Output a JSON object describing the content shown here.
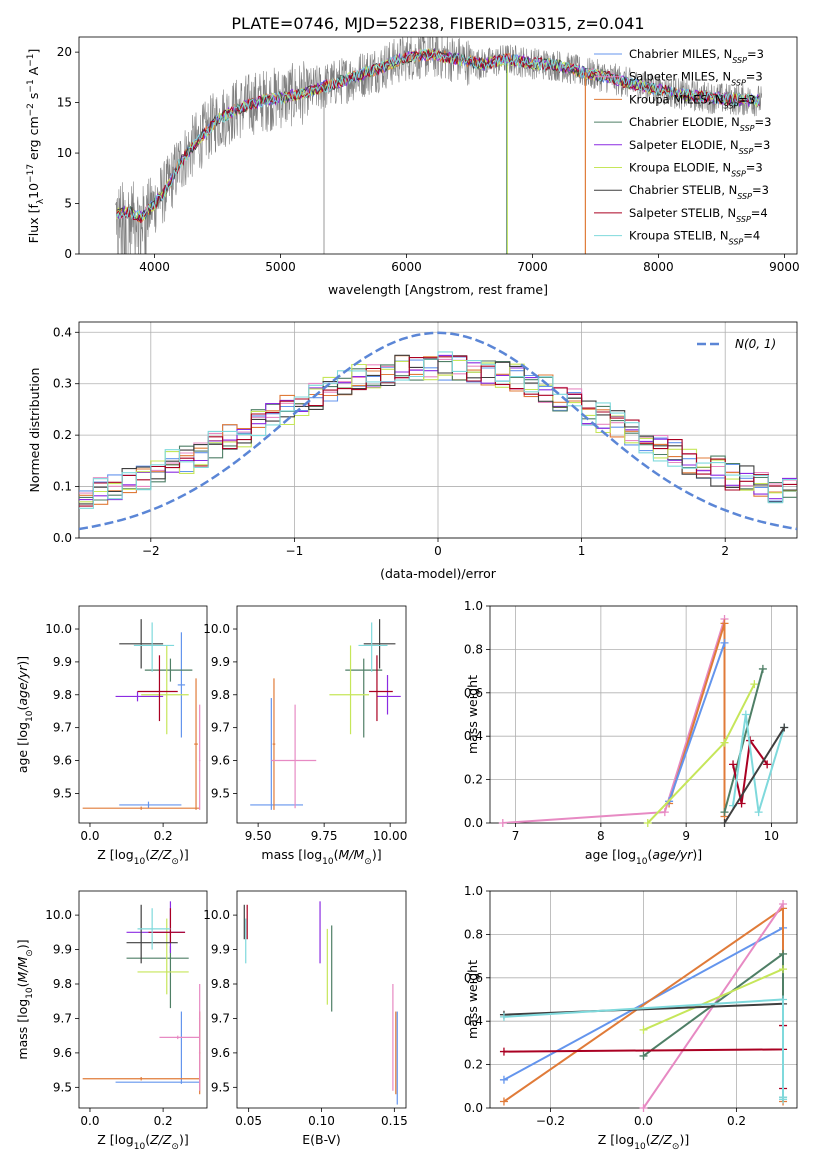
{
  "title": "PLATE=0746, MJD=52238, FIBERID=0315, z=0.041",
  "colors": {
    "obs": "#7f7f7f",
    "Chabrier MILES": "#6495ed",
    "Salpeter MILES": "#e78ac3",
    "Kroupa MILES": "#e07b39",
    "Chabrier ELODIE": "#4f7f66",
    "Salpeter ELODIE": "#8b2be2",
    "Kroupa ELODIE": "#c6e65a",
    "Chabrier STELIB": "#3f3f3f",
    "Salpeter STELIB": "#aa0022",
    "Kroupa STELIB": "#7fd9dc",
    "gauss": "#5b86d6"
  },
  "chart_data": [
    {
      "type": "line",
      "name": "spectrum",
      "title": "PLATE=0746, MJD=52238, FIBERID=0315, z=0.041",
      "xlabel": "wavelength [Angstrom, rest frame]",
      "ylabel": "Flux [f_λ 10^-17 erg cm^-2 s^-1 A^-1]",
      "xlim": [
        3400,
        9100
      ],
      "ylim": [
        0,
        21.5
      ],
      "xticks": [
        4000,
        5000,
        6000,
        7000,
        8000,
        9000
      ],
      "yticks": [
        0,
        5,
        10,
        15,
        20
      ],
      "continuum": {
        "x": [
          3700,
          3800,
          3900,
          4000,
          4100,
          4200,
          4300,
          4400,
          4500,
          4600,
          4700,
          4800,
          4900,
          5000,
          5200,
          5400,
          5600,
          5800,
          6000,
          6200,
          6400,
          6600,
          6800,
          7000,
          7200,
          7400,
          7600,
          7800,
          8000,
          8200,
          8400,
          8600,
          8800
        ],
        "y": [
          4.0,
          4.2,
          3.6,
          5.0,
          6.5,
          9.0,
          10.6,
          12.0,
          13.3,
          14.0,
          14.6,
          15.0,
          15.3,
          15.5,
          16.0,
          16.8,
          17.6,
          18.5,
          19.5,
          19.8,
          19.3,
          18.8,
          19.3,
          18.9,
          18.7,
          18.0,
          17.5,
          16.8,
          16.3,
          15.8,
          15.5,
          15.3,
          15.2
        ]
      },
      "series": [
        {
          "name": "Chabrier MILES, N_SSP=3",
          "label": "Chabrier MILES, N",
          "nssp": "=3"
        },
        {
          "name": "Salpeter MILES, N_SSP=3",
          "label": "Salpeter MILES, N",
          "nssp": "=3"
        },
        {
          "name": "Kroupa MILES, N_SSP=3",
          "label": "Kroupa MILES, N",
          "nssp": "=3"
        },
        {
          "name": "Chabrier ELODIE, N_SSP=3",
          "label": "Chabrier ELODIE, N",
          "nssp": "=3"
        },
        {
          "name": "Salpeter ELODIE, N_SSP=3",
          "label": "Salpeter ELODIE, N",
          "nssp": "=3"
        },
        {
          "name": "Kroupa ELODIE, N_SSP=3",
          "label": "Kroupa ELODIE, N",
          "nssp": "=3"
        },
        {
          "name": "Chabrier STELIB, N_SSP=3",
          "label": "Chabrier STELIB, N",
          "nssp": "=3"
        },
        {
          "name": "Salpeter STELIB, N_SSP=4",
          "label": "Salpeter STELIB, N",
          "nssp": "=4"
        },
        {
          "name": "Kroupa STELIB, N_SSP=4",
          "label": "Kroupa STELIB, N",
          "nssp": "=4"
        }
      ],
      "legend": "top-right"
    },
    {
      "type": "line",
      "name": "residual-histogram",
      "xlabel": "(data-model)/error",
      "ylabel": "Normed distribution",
      "xlim": [
        -2.5,
        2.5
      ],
      "ylim": [
        0,
        0.42
      ],
      "xticks": [
        -2,
        -1,
        0,
        1,
        2
      ],
      "yticks": [
        0.0,
        0.1,
        0.2,
        0.3,
        0.4
      ],
      "gauss_label": "N(0, 1)",
      "legend": "top-right",
      "grid": true
    },
    {
      "type": "scatter",
      "name": "age-vs-Z",
      "xlabel": "Z [log10(Z/Z☉)]",
      "ylabel": "age [log10(age/yr)]",
      "xlim": [
        -0.03,
        0.32
      ],
      "ylim": [
        9.41,
        10.07
      ],
      "xticks": [
        0.0,
        0.2
      ],
      "yticks": [
        9.5,
        9.6,
        9.7,
        9.8,
        9.9,
        10.0
      ],
      "points": [
        {
          "s": "Chabrier MILES",
          "x": 0.25,
          "y": 9.83,
          "xe": [
            0.24,
            0.26
          ],
          "ye": [
            9.67,
            9.99
          ]
        },
        {
          "s": "Chabrier MILES",
          "x": 0.16,
          "y": 9.465,
          "xe": [
            0.08,
            0.25
          ],
          "ye": [
            9.455,
            9.475
          ]
        },
        {
          "s": "Kroupa MILES",
          "x": 0.29,
          "y": 9.65,
          "xe": [
            0.285,
            0.295
          ],
          "ye": [
            9.45,
            9.85
          ]
        },
        {
          "s": "Kroupa MILES",
          "x": 0.14,
          "y": 9.455,
          "xe": [
            -0.02,
            0.3
          ],
          "ye": [
            9.45,
            9.46
          ]
        },
        {
          "s": "Salpeter MILES",
          "x": 0.3,
          "y": 9.6,
          "xe": [
            0.298,
            0.302
          ],
          "ye": [
            9.45,
            9.77
          ]
        },
        {
          "s": "Chabrier ELODIE",
          "x": 0.22,
          "y": 9.875,
          "xe": [
            0.15,
            0.28
          ],
          "ye": [
            9.84,
            9.91
          ]
        },
        {
          "s": "Kroupa ELODIE",
          "x": 0.21,
          "y": 9.8,
          "xe": [
            0.14,
            0.27
          ],
          "ye": [
            9.68,
            9.95
          ]
        },
        {
          "s": "Salpeter ELODIE",
          "x": 0.13,
          "y": 9.795,
          "xe": [
            0.07,
            0.2
          ],
          "ye": [
            9.78,
            9.81
          ]
        },
        {
          "s": "Chabrier STELIB",
          "x": 0.14,
          "y": 9.955,
          "xe": [
            0.08,
            0.2
          ],
          "ye": [
            9.88,
            10.03
          ]
        },
        {
          "s": "Salpeter STELIB",
          "x": 0.19,
          "y": 9.81,
          "xe": [
            0.13,
            0.24
          ],
          "ye": [
            9.72,
            9.92
          ]
        },
        {
          "s": "Kroupa STELIB",
          "x": 0.17,
          "y": 9.95,
          "xe": [
            0.12,
            0.23
          ],
          "ye": [
            9.87,
            10.02
          ]
        }
      ]
    },
    {
      "type": "scatter",
      "name": "age-vs-mass",
      "xlabel": "mass [log10(M/M☉)]",
      "ylabel": "",
      "xlim": [
        9.42,
        10.06
      ],
      "ylim": [
        9.41,
        10.07
      ],
      "xticks": [
        9.5,
        9.75,
        10.0
      ],
      "tick_labels": [
        "9.50",
        "9.75",
        "10.00"
      ],
      "yticks": [
        9.5,
        9.6,
        9.7,
        9.8,
        9.9,
        10.0
      ],
      "points": [
        {
          "s": "Chabrier MILES",
          "x": 9.55,
          "y": 9.465,
          "xe": [
            9.47,
            9.67
          ],
          "ye": [
            9.45,
            9.79
          ]
        },
        {
          "s": "Kroupa MILES",
          "x": 9.56,
          "y": 9.65,
          "xe": [
            9.555,
            9.565
          ],
          "ye": [
            9.45,
            9.85
          ]
        },
        {
          "s": "Salpeter MILES",
          "x": 9.64,
          "y": 9.6,
          "xe": [
            9.55,
            9.72
          ],
          "ye": [
            9.455,
            9.77
          ]
        },
        {
          "s": "Chabrier ELODIE",
          "x": 9.9,
          "y": 9.875,
          "xe": [
            9.83,
            9.97
          ],
          "ye": [
            9.67,
            9.91
          ]
        },
        {
          "s": "Kroupa ELODIE",
          "x": 9.85,
          "y": 9.8,
          "xe": [
            9.77,
            9.92
          ],
          "ye": [
            9.68,
            9.95
          ]
        },
        {
          "s": "Salpeter ELODIE",
          "x": 9.99,
          "y": 9.795,
          "xe": [
            9.95,
            10.04
          ],
          "ye": [
            9.74,
            9.86
          ]
        },
        {
          "s": "Chabrier STELIB",
          "x": 9.96,
          "y": 9.955,
          "xe": [
            9.9,
            10.02
          ],
          "ye": [
            9.88,
            10.03
          ]
        },
        {
          "s": "Salpeter STELIB",
          "x": 9.95,
          "y": 9.81,
          "xe": [
            9.92,
            10.01
          ],
          "ye": [
            9.72,
            9.92
          ]
        },
        {
          "s": "Kroupa STELIB",
          "x": 9.93,
          "y": 9.95,
          "xe": [
            9.88,
            9.99
          ],
          "ye": [
            9.87,
            10.02
          ]
        }
      ]
    },
    {
      "type": "line",
      "name": "mass-weight-vs-age",
      "xlabel": "age [log10(age/yr)]",
      "ylabel": "mass weight",
      "xlim": [
        6.7,
        10.3
      ],
      "ylim": [
        0,
        1
      ],
      "xticks": [
        7,
        8,
        9,
        10
      ],
      "yticks": [
        0.0,
        0.2,
        0.4,
        0.6,
        0.8,
        1.0
      ],
      "grid": true,
      "series": [
        {
          "s": "Salpeter MILES",
          "x": [
            6.85,
            8.75,
            9.45
          ],
          "y": [
            0.0,
            0.05,
            0.94
          ]
        },
        {
          "s": "Kroupa MILES",
          "x": [
            8.8,
            9.45,
            9.45
          ],
          "y": [
            0.09,
            0.92,
            0.03
          ]
        },
        {
          "s": "Chabrier MILES",
          "x": [
            8.8,
            9.45
          ],
          "y": [
            0.1,
            0.83
          ]
        },
        {
          "s": "Kroupa ELODIE",
          "x": [
            8.55,
            9.45,
            9.8
          ],
          "y": [
            0.0,
            0.37,
            0.64
          ]
        },
        {
          "s": "Chabrier ELODIE",
          "x": [
            9.45,
            9.9
          ],
          "y": [
            0.05,
            0.71
          ]
        },
        {
          "s": "Salpeter STELIB",
          "x": [
            9.55,
            9.65,
            9.75,
            9.95
          ],
          "y": [
            0.27,
            0.09,
            0.38,
            0.27
          ]
        },
        {
          "s": "Kroupa STELIB",
          "x": [
            9.55,
            9.7,
            9.85,
            10.15
          ],
          "y": [
            0.08,
            0.5,
            0.05,
            0.44
          ]
        },
        {
          "s": "Chabrier STELIB",
          "x": [
            9.45,
            10.15
          ],
          "y": [
            0.0,
            0.44
          ]
        }
      ]
    },
    {
      "type": "scatter",
      "name": "mass-vs-Z",
      "xlabel": "Z [log10(Z/Z☉)]",
      "ylabel": "mass [log10(M/M☉)]",
      "xlim": [
        -0.03,
        0.32
      ],
      "ylim": [
        9.44,
        10.07
      ],
      "xticks": [
        0.0,
        0.2
      ],
      "yticks": [
        9.5,
        9.6,
        9.7,
        9.8,
        9.9,
        10.0
      ],
      "points": [
        {
          "s": "Chabrier MILES",
          "x": 0.25,
          "y": 9.515,
          "xe": [
            0.07,
            0.3
          ],
          "ye": [
            9.51,
            9.72
          ]
        },
        {
          "s": "Kroupa MILES",
          "x": 0.14,
          "y": 9.525,
          "xe": [
            -0.02,
            0.3
          ],
          "ye": [
            9.52,
            9.53
          ]
        },
        {
          "s": "Kroupa MILES",
          "x": 0.3,
          "y": 9.6,
          "xe": [
            0.298,
            0.302
          ],
          "ye": [
            9.48,
            9.72
          ]
        },
        {
          "s": "Salpeter MILES",
          "x": 0.24,
          "y": 9.645,
          "xe": [
            0.19,
            0.3
          ],
          "ye": [
            9.64,
            9.65
          ]
        },
        {
          "s": "Salpeter MILES",
          "x": 0.3,
          "y": 9.7,
          "xe": [
            0.298,
            0.302
          ],
          "ye": [
            9.49,
            9.8
          ]
        },
        {
          "s": "Chabrier ELODIE",
          "x": 0.22,
          "y": 9.875,
          "xe": [
            0.1,
            0.27
          ],
          "ye": [
            9.73,
            9.91
          ]
        },
        {
          "s": "Kroupa ELODIE",
          "x": 0.21,
          "y": 9.835,
          "xe": [
            0.13,
            0.27
          ],
          "ye": [
            9.77,
            9.99
          ]
        },
        {
          "s": "Salpeter ELODIE",
          "x": 0.22,
          "y": 9.95,
          "xe": [
            0.1,
            0.26
          ],
          "ye": [
            9.89,
            10.04
          ]
        },
        {
          "s": "Chabrier STELIB",
          "x": 0.14,
          "y": 9.92,
          "xe": [
            0.1,
            0.24
          ],
          "ye": [
            9.86,
            10.03
          ]
        },
        {
          "s": "Salpeter STELIB",
          "x": 0.22,
          "y": 9.95,
          "xe": [
            0.16,
            0.26
          ],
          "ye": [
            9.92,
            10.02
          ]
        },
        {
          "s": "Kroupa STELIB",
          "x": 0.17,
          "y": 9.96,
          "xe": [
            0.13,
            0.22
          ],
          "ye": [
            9.9,
            10.02
          ]
        }
      ]
    },
    {
      "type": "scatter",
      "name": "mass-vs-EBV",
      "xlabel": "E(B-V)",
      "ylabel": "",
      "xlim": [
        0.042,
        0.158
      ],
      "ylim": [
        9.44,
        10.07
      ],
      "xticks": [
        0.05,
        0.1,
        0.15
      ],
      "tick_labels": [
        "0.05",
        "0.10",
        "0.15"
      ],
      "yticks": [
        9.5,
        9.6,
        9.7,
        9.8,
        9.9,
        10.0
      ],
      "points": [
        {
          "s": "Kroupa STELIB",
          "x": 0.048,
          "y": 9.92,
          "ye": [
            9.86,
            9.99
          ]
        },
        {
          "s": "Salpeter STELIB",
          "x": 0.049,
          "y": 9.97,
          "ye": [
            9.93,
            10.03
          ]
        },
        {
          "s": "Chabrier STELIB",
          "x": 0.047,
          "y": 9.98,
          "ye": [
            9.93,
            10.03
          ]
        },
        {
          "s": "Salpeter ELODIE",
          "x": 0.099,
          "y": 9.95,
          "ye": [
            9.86,
            10.04
          ]
        },
        {
          "s": "Kroupa ELODIE",
          "x": 0.104,
          "y": 9.83,
          "ye": [
            9.74,
            9.96
          ]
        },
        {
          "s": "Chabrier ELODIE",
          "x": 0.107,
          "y": 9.85,
          "ye": [
            9.72,
            9.97
          ]
        },
        {
          "s": "Salpeter MILES",
          "x": 0.149,
          "y": 9.66,
          "ye": [
            9.49,
            9.8
          ]
        },
        {
          "s": "Kroupa MILES",
          "x": 0.151,
          "y": 9.6,
          "ye": [
            9.48,
            9.72
          ]
        },
        {
          "s": "Chabrier MILES",
          "x": 0.152,
          "y": 9.58,
          "ye": [
            9.45,
            9.72
          ]
        }
      ]
    },
    {
      "type": "line",
      "name": "mass-weight-vs-Z",
      "xlabel": "Z [log10(Z/Z☉)]",
      "ylabel": "mass weight",
      "xlim": [
        -0.33,
        0.33
      ],
      "ylim": [
        0,
        1
      ],
      "xticks": [
        -0.2,
        0.0,
        0.2
      ],
      "yticks": [
        0.0,
        0.2,
        0.4,
        0.6,
        0.8,
        1.0
      ],
      "grid": true,
      "series": [
        {
          "s": "Chabrier MILES",
          "x": [
            -0.3,
            0.3
          ],
          "y": [
            0.13,
            0.83
          ]
        },
        {
          "s": "Kroupa MILES",
          "x": [
            -0.3,
            0.3,
            0.3
          ],
          "y": [
            0.03,
            0.92,
            0.03
          ]
        },
        {
          "s": "Salpeter MILES",
          "x": [
            0.0,
            0.3
          ],
          "y": [
            0.0,
            0.94
          ]
        },
        {
          "s": "Chabrier ELODIE",
          "x": [
            0.0,
            0.3,
            0.3
          ],
          "y": [
            0.24,
            0.71,
            0.05
          ]
        },
        {
          "s": "Kroupa ELODIE",
          "x": [
            0.0,
            0.3
          ],
          "y": [
            0.36,
            0.64
          ]
        },
        {
          "s": "Chabrier STELIB",
          "x": [
            -0.3,
            0.3
          ],
          "y": [
            0.43,
            0.48
          ]
        },
        {
          "s": "Salpeter STELIB",
          "x": [
            -0.3,
            0.3,
            0.3,
            0.3
          ],
          "y": [
            0.26,
            0.27,
            0.38,
            0.09
          ]
        },
        {
          "s": "Kroupa STELIB",
          "x": [
            -0.3,
            0.3,
            0.3,
            0.3
          ],
          "y": [
            0.42,
            0.5,
            0.05,
            0.04
          ]
        }
      ]
    }
  ]
}
